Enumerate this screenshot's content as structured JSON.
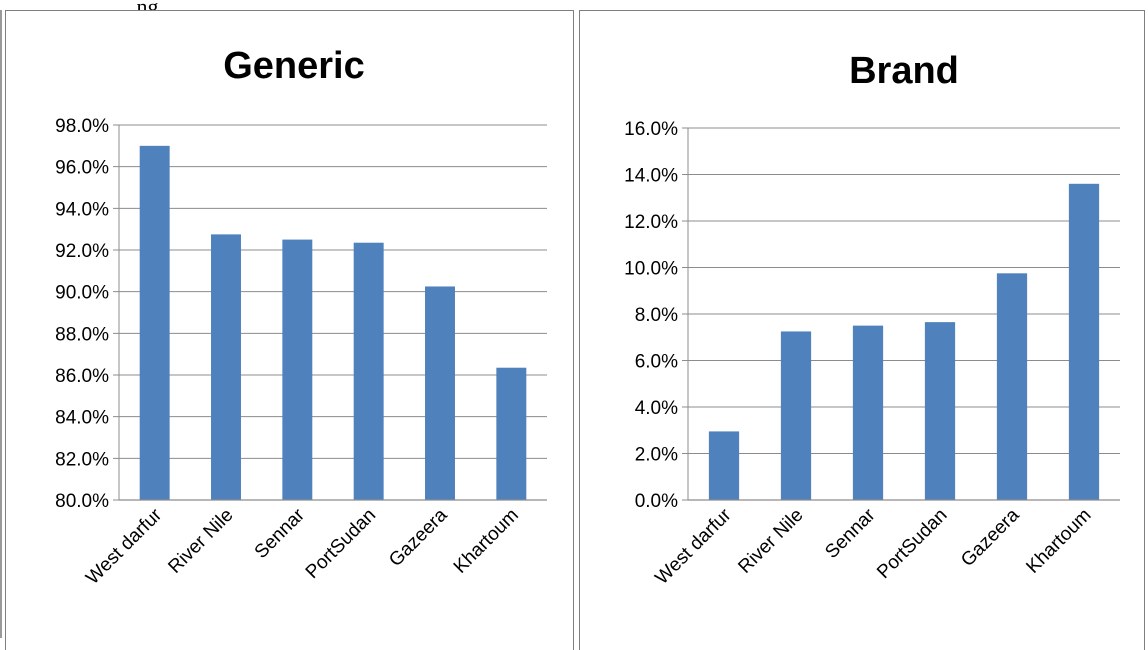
{
  "header_fragment": "...ng",
  "chart_data": [
    {
      "type": "bar",
      "title": "Generic",
      "categories": [
        "West darfur",
        "River Nile",
        "Sennar",
        "PortSudan",
        "Gazeera",
        "Khartoum"
      ],
      "values": [
        97.0,
        92.75,
        92.5,
        92.35,
        90.25,
        86.35
      ],
      "ylim": [
        80,
        98
      ],
      "yticks": [
        80,
        82,
        84,
        86,
        88,
        90,
        92,
        94,
        96,
        98
      ],
      "tick_labels": [
        "80.0%",
        "82.0%",
        "84.0%",
        "86.0%",
        "88.0%",
        "90.0%",
        "92.0%",
        "94.0%",
        "96.0%",
        "98.0%"
      ],
      "grid": true,
      "bar_color": "#4f81bd"
    },
    {
      "type": "bar",
      "title": "Brand",
      "categories": [
        "West darfur",
        "River Nile",
        "Sennar",
        "PortSudan",
        "Gazeera",
        "Khartoum"
      ],
      "values": [
        2.95,
        7.25,
        7.5,
        7.65,
        9.75,
        13.6
      ],
      "ylim": [
        0,
        16
      ],
      "yticks": [
        0,
        2,
        4,
        6,
        8,
        10,
        12,
        14,
        16
      ],
      "tick_labels": [
        "0.0%",
        "2.0%",
        "4.0%",
        "6.0%",
        "8.0%",
        "10.0%",
        "12.0%",
        "14.0%",
        "16.0%"
      ],
      "grid": true,
      "bar_color": "#4f81bd"
    }
  ]
}
